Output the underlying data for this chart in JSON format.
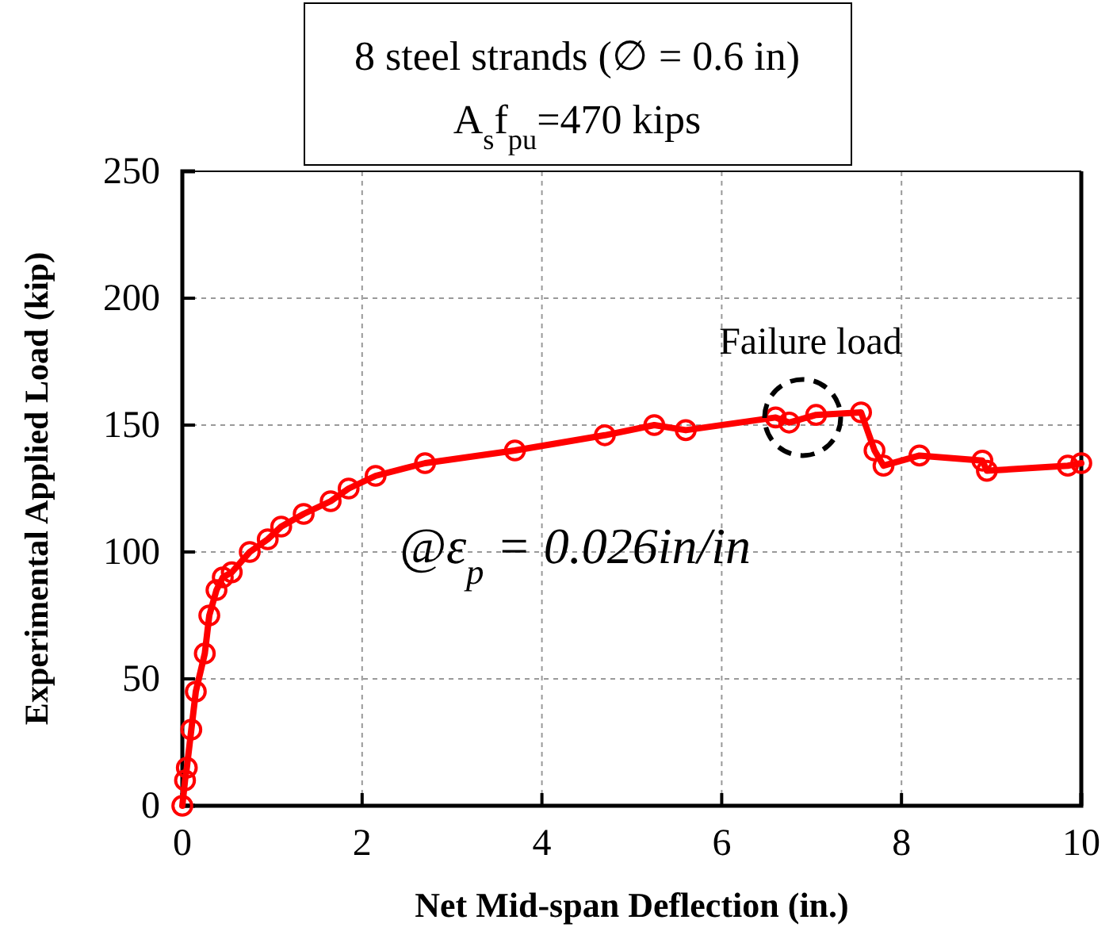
{
  "chart_data": {
    "type": "line",
    "title": "8 steel strands (∅ = 0.6 in)",
    "subtitle": "A$_{s}$f$_{pu}$=470 kips",
    "xlabel": "Net Mid-span  Deflection (in.)",
    "ylabel": "Experimental Applied Load (kip)",
    "x": [
      0,
      0.03,
      0.05,
      0.1,
      0.15,
      0.25,
      0.3,
      0.38,
      0.45,
      0.55,
      0.75,
      0.95,
      1.1,
      1.35,
      1.65,
      1.85,
      2.15,
      2.7,
      3.7,
      4.7,
      5.25,
      5.6,
      6.6,
      6.75,
      7.05,
      7.55,
      7.7,
      7.8,
      8.2,
      8.9,
      8.95,
      9.85,
      10
    ],
    "series": [
      {
        "color": "#ff0000",
        "values": [
          0,
          10,
          15,
          30,
          45,
          60,
          75,
          85,
          90,
          92,
          100,
          105,
          110,
          115,
          120,
          125,
          130,
          135,
          140,
          146,
          150,
          148,
          153,
          151,
          154,
          155,
          140,
          134,
          138,
          136,
          132,
          134,
          135
        ]
      }
    ],
    "xlim": [
      0,
      10
    ],
    "xticks": [
      0,
      2,
      4,
      6,
      8,
      10
    ],
    "ylim": [
      0,
      250
    ],
    "yticks": [
      0,
      50,
      100,
      150,
      200,
      250
    ],
    "grid": true,
    "marker": "circle",
    "line_style": "solid",
    "annotations": [
      {
        "text": "Failure load",
        "x": 6.9,
        "y": 153
      },
      "@ε$_{p}$ = 0.026in/in"
    ]
  }
}
